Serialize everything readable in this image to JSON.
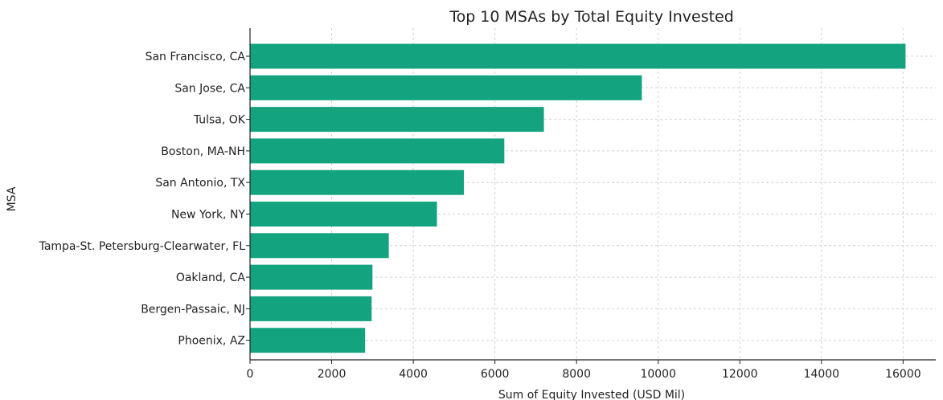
{
  "chart_data": {
    "type": "bar",
    "orientation": "horizontal",
    "title": "Top 10 MSAs by Total Equity Invested",
    "xlabel": "Sum of Equity Invested (USD Mil)",
    "ylabel": "MSA",
    "categories": [
      "San Francisco, CA",
      "San Jose, CA",
      "Tulsa, OK",
      "Boston, MA-NH",
      "San Antonio, TX",
      "New York, NY",
      "Tampa-St. Petersburg-Clearwater, FL",
      "Oakland, CA",
      "Bergen-Passaic, NJ",
      "Phoenix, AZ"
    ],
    "values": [
      16060,
      9600,
      7200,
      6230,
      5240,
      4580,
      3400,
      3000,
      2980,
      2820
    ],
    "xlim": [
      0,
      16800
    ],
    "xticks": [
      0,
      2000,
      4000,
      6000,
      8000,
      10000,
      12000,
      14000,
      16000
    ],
    "grid": true,
    "bar_color": "#14a37f"
  }
}
